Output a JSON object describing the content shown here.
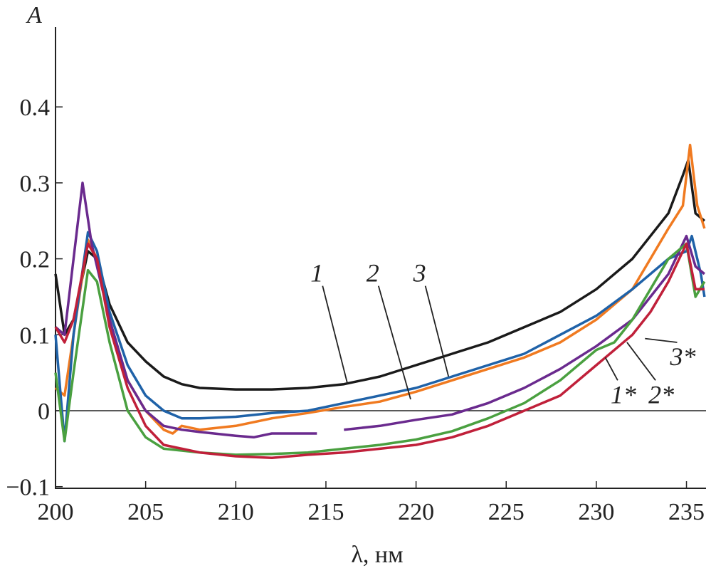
{
  "chart_data": {
    "type": "line",
    "title": "",
    "xlabel": "λ, нм",
    "ylabel": "A",
    "xlim": [
      200,
      236
    ],
    "ylim": [
      -0.1,
      0.5
    ],
    "xticks": [
      "200",
      "205",
      "210",
      "215",
      "220",
      "225",
      "230",
      "235"
    ],
    "yticks": [
      "−0.1",
      "0",
      "0.1",
      "0.2",
      "0.3",
      "0.4"
    ],
    "xtick_values": [
      200,
      205,
      210,
      215,
      220,
      225,
      230,
      235
    ],
    "ytick_values": [
      -0.1,
      0,
      0.1,
      0.2,
      0.3,
      0.4
    ],
    "grid": false,
    "series": [
      {
        "name": "1",
        "color": "#1a1a1a",
        "label_at": [
          216.2,
          0.035
        ],
        "label_text_at": [
          214.5,
          0.17
        ],
        "x": [
          200,
          200.5,
          201,
          201.8,
          202.3,
          203,
          204,
          205,
          206,
          207,
          208,
          210,
          212,
          214,
          216,
          218,
          220,
          222,
          224,
          226,
          228,
          230,
          232,
          233,
          234,
          234.8,
          235.1,
          235.5,
          236
        ],
        "y": [
          0.18,
          0.1,
          0.12,
          0.21,
          0.2,
          0.14,
          0.09,
          0.065,
          0.045,
          0.035,
          0.03,
          0.028,
          0.028,
          0.03,
          0.035,
          0.045,
          0.06,
          0.075,
          0.09,
          0.11,
          0.13,
          0.16,
          0.2,
          0.23,
          0.26,
          0.31,
          0.33,
          0.26,
          0.25
        ]
      },
      {
        "name": "2",
        "color": "#f07a20",
        "label_at": [
          219.7,
          0.015
        ],
        "label_text_at": [
          217.6,
          0.17
        ],
        "x": [
          200,
          200.5,
          201,
          201.8,
          202.3,
          203,
          204,
          205,
          206,
          206.5,
          207,
          208,
          210,
          212,
          214,
          216,
          218,
          220,
          222,
          224,
          226,
          228,
          230,
          232,
          233,
          234,
          234.8,
          235.2,
          235.6,
          236
        ],
        "y": [
          0.03,
          0.02,
          0.1,
          0.225,
          0.2,
          0.12,
          0.04,
          0.0,
          -0.025,
          -0.03,
          -0.02,
          -0.025,
          -0.02,
          -0.01,
          -0.003,
          0.005,
          0.012,
          0.025,
          0.04,
          0.055,
          0.07,
          0.09,
          0.12,
          0.16,
          0.2,
          0.24,
          0.27,
          0.35,
          0.27,
          0.24
        ]
      },
      {
        "name": "3",
        "color": "#1f62a8",
        "label_at": [
          221.8,
          0.045
        ],
        "label_text_at": [
          220.2,
          0.17
        ],
        "x": [
          200,
          200.5,
          201,
          201.8,
          202.3,
          203,
          204,
          205,
          206,
          207,
          208,
          210,
          212,
          214,
          216,
          218,
          220,
          222,
          224,
          226,
          228,
          230,
          232,
          233,
          234,
          235,
          235.3,
          235.8,
          236
        ],
        "y": [
          0.1,
          -0.04,
          0.1,
          0.235,
          0.21,
          0.13,
          0.06,
          0.02,
          0.0,
          -0.01,
          -0.01,
          -0.008,
          -0.003,
          0.0,
          0.01,
          0.02,
          0.03,
          0.045,
          0.06,
          0.075,
          0.1,
          0.125,
          0.16,
          0.18,
          0.2,
          0.21,
          0.23,
          0.18,
          0.15
        ]
      },
      {
        "name": "3*",
        "color": "#6a2a8e",
        "label_at": [
          232.7,
          0.095
        ],
        "label_text_at": [
          234.8,
          0.06
        ],
        "x": [
          200,
          200.5,
          201.5,
          202,
          203,
          204,
          205,
          206,
          207,
          208,
          210,
          211,
          212,
          214.5,
          null,
          216,
          218,
          220,
          222,
          224,
          226,
          228,
          230,
          232,
          233,
          234,
          235,
          235.5,
          236
        ],
        "y": [
          0.11,
          0.1,
          0.3,
          0.22,
          0.12,
          0.04,
          0.0,
          -0.02,
          -0.025,
          -0.028,
          -0.033,
          -0.035,
          -0.03,
          -0.03,
          null,
          -0.025,
          -0.02,
          -0.012,
          -0.005,
          0.01,
          0.03,
          0.055,
          0.085,
          0.12,
          0.15,
          0.18,
          0.23,
          0.19,
          0.18
        ]
      },
      {
        "name": "2*",
        "color": "#4aa040",
        "label_at": [
          231.7,
          0.09
        ],
        "label_text_at": [
          233.6,
          0.01
        ],
        "x": [
          200,
          200.5,
          201,
          201.8,
          202.3,
          203,
          204,
          205,
          206,
          208,
          210,
          212,
          214,
          216,
          218,
          220,
          222,
          224,
          226,
          228,
          230,
          231,
          232,
          233,
          234,
          235,
          235.5,
          236
        ],
        "y": [
          0.05,
          -0.04,
          0.05,
          0.185,
          0.17,
          0.09,
          0.0,
          -0.035,
          -0.05,
          -0.055,
          -0.058,
          -0.057,
          -0.055,
          -0.05,
          -0.045,
          -0.038,
          -0.027,
          -0.01,
          0.01,
          0.04,
          0.08,
          0.09,
          0.12,
          0.16,
          0.2,
          0.22,
          0.15,
          0.17
        ]
      },
      {
        "name": "1*",
        "color": "#c0203a",
        "label_at": [
          230.5,
          0.07
        ],
        "label_text_at": [
          231.5,
          0.01
        ],
        "x": [
          200,
          200.5,
          201,
          201.8,
          202.3,
          203,
          204,
          205,
          206,
          208,
          210,
          212,
          214,
          216,
          218,
          220,
          222,
          224,
          226,
          228,
          230,
          232,
          233,
          234,
          235,
          235.5,
          236
        ],
        "y": [
          0.11,
          0.09,
          0.12,
          0.22,
          0.2,
          0.11,
          0.03,
          -0.02,
          -0.045,
          -0.055,
          -0.06,
          -0.062,
          -0.058,
          -0.055,
          -0.05,
          -0.045,
          -0.035,
          -0.02,
          0.0,
          0.02,
          0.06,
          0.1,
          0.13,
          0.17,
          0.22,
          0.16,
          0.16
        ]
      }
    ]
  }
}
